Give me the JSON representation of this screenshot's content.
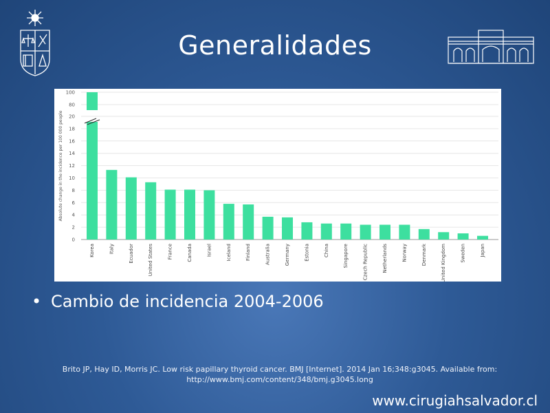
{
  "slide": {
    "title": "Generalidades",
    "bullet": "Cambio de incidencia 2004-2006",
    "reference_line1": "Brito JP, Hay ID, Morris JC. Low risk papillary thyroid cancer. BMJ [Internet]. 2014 Jan 16;348:g3045. Available from:",
    "reference_line2": "http://www.bmj.com/content/348/bmj.g3045.long",
    "website": "www.cirugiahsalvador.cl"
  },
  "colors": {
    "bar": "#3ddf9f",
    "background": "#2e5a96",
    "grid": "#e6e6e6"
  },
  "icons": {
    "left_logo": "university-crest-icon",
    "right_logo": "hospital-building-icon"
  },
  "chart_data": {
    "type": "bar",
    "title": "",
    "xlabel": "",
    "ylabel": "Absolute change in the incidence per 100 000 people",
    "categories": [
      "Korea",
      "Italy",
      "Ecuador",
      "United States",
      "France",
      "Canada",
      "Israel",
      "Iceland",
      "Finland",
      "Australia",
      "Germany",
      "Estonia",
      "China",
      "Singapore",
      "Czech Republic",
      "Netherlands",
      "Norway",
      "Denmark",
      "United Kingdom",
      "Sweden",
      "Japan"
    ],
    "values": [
      100,
      11.3,
      10.1,
      9.3,
      8.1,
      8.1,
      8.0,
      5.8,
      5.7,
      3.7,
      3.6,
      2.8,
      2.6,
      2.6,
      2.4,
      2.4,
      2.4,
      1.7,
      1.2,
      1.0,
      0.6
    ],
    "y_ticks": [
      "0",
      "2",
      "4",
      "6",
      "8",
      "10",
      "12",
      "14",
      "16",
      "18",
      "20",
      "80",
      "100"
    ],
    "axis_break": "between 20 and 80",
    "ylim": [
      0,
      100
    ],
    "grid": true,
    "legend": "none"
  }
}
